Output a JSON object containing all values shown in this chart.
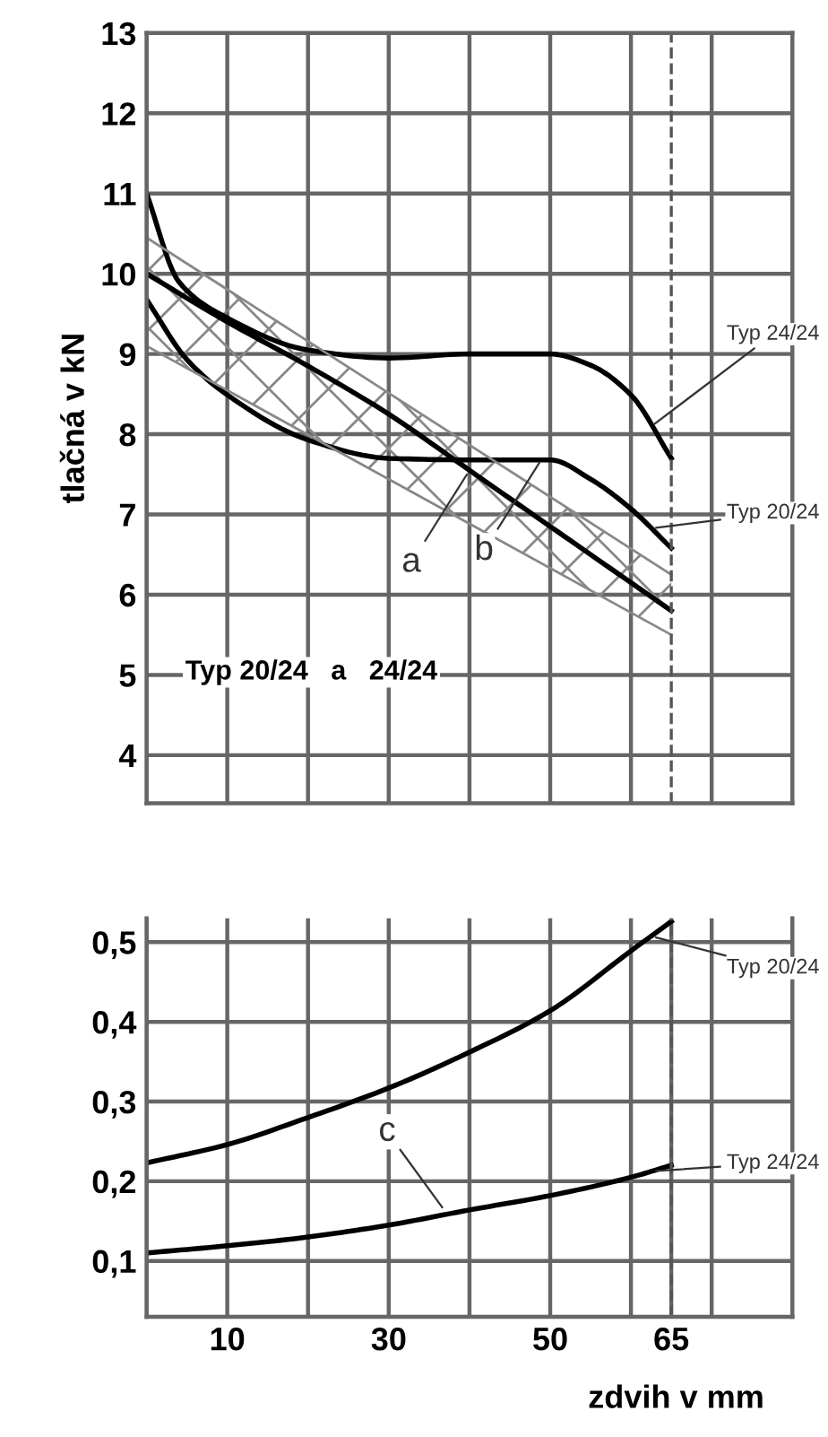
{
  "chart_data": [
    {
      "type": "line",
      "ylabel": "tlačná v kN",
      "xlim": [
        0,
        80
      ],
      "ylim": [
        3.4,
        13
      ],
      "xticks": [
        {
          "value": 0,
          "label": null
        },
        {
          "value": 10,
          "label": null
        },
        {
          "value": 20,
          "label": null
        },
        {
          "value": 30,
          "label": null
        },
        {
          "value": 40,
          "label": null
        },
        {
          "value": 50,
          "label": null
        },
        {
          "value": 60,
          "label": null
        },
        {
          "value": 70,
          "label": null
        },
        {
          "value": 80,
          "label": null
        }
      ],
      "yticks": [
        4,
        5,
        6,
        7,
        8,
        9,
        10,
        11,
        12,
        13
      ],
      "tick_labels": "y",
      "grid": true,
      "legend": false,
      "series": [
        {
          "name": "Typ 24/24",
          "color": "#000000",
          "x": [
            0,
            4,
            10,
            20,
            30,
            40,
            50,
            55,
            60,
            65
          ],
          "values": [
            11,
            9.9,
            9.45,
            9.05,
            8.95,
            9.0,
            9.0,
            8.86,
            8.49,
            7.7
          ]
        },
        {
          "name": "Typ 20/24",
          "color": "#000000",
          "x": [
            0,
            5,
            10,
            20,
            30,
            40,
            50,
            55,
            60,
            65
          ],
          "values": [
            9.68,
            8.93,
            8.49,
            7.93,
            7.7,
            7.68,
            7.68,
            7.44,
            7.07,
            6.58
          ]
        },
        {
          "color": "#000000",
          "x": [
            0,
            10,
            20,
            30,
            40,
            50,
            60,
            65
          ],
          "values": [
            10,
            9.4,
            8.85,
            8.25,
            7.55,
            6.85,
            6.15,
            5.8
          ]
        },
        {
          "color": "#888888",
          "x": [
            0,
            65
          ],
          "values": [
            10.45,
            6.25
          ]
        },
        {
          "color": "#888888",
          "x": [
            0,
            65
          ],
          "values": [
            9.1,
            5.5
          ]
        }
      ],
      "ref_lines": [
        {
          "axis": "x",
          "value": 65,
          "line_style": "dashed",
          "color": "#555555"
        }
      ],
      "annotations": [
        {
          "text": "b",
          "x": 49,
          "y": 7.7
        },
        {
          "text": "a",
          "x": 40,
          "y": 7.55
        },
        "Typ 20/24   a   24/24"
      ]
    },
    {
      "type": "line",
      "xlabel": "zdvih v mm",
      "xlim": [
        0,
        80
      ],
      "ylim": [
        0.03,
        0.53
      ],
      "xticks": [
        {
          "value": 0,
          "label": null
        },
        10,
        {
          "value": 20,
          "label": null
        },
        30,
        {
          "value": 40,
          "label": null
        },
        50,
        {
          "value": 60,
          "label": null
        },
        65,
        {
          "value": 70,
          "label": null
        },
        {
          "value": 80,
          "label": null
        }
      ],
      "yticks": [
        {
          "value": 0.1,
          "label": "0,1"
        },
        {
          "value": 0.2,
          "label": "0,2"
        },
        {
          "value": 0.3,
          "label": "0,3"
        },
        {
          "value": 0.4,
          "label": "0,4"
        },
        {
          "value": 0.5,
          "label": "0,5"
        }
      ],
      "grid": true,
      "legend": false,
      "series": [
        {
          "name": "Typ 20/24",
          "color": "#000000",
          "x": [
            0,
            10,
            20,
            30,
            40,
            50,
            60,
            65
          ],
          "values": [
            0.223,
            0.246,
            0.28,
            0.317,
            0.362,
            0.414,
            0.489,
            0.526
          ]
        },
        {
          "name": "Typ 24/24",
          "color": "#000000",
          "x": [
            0,
            10,
            20,
            30,
            40,
            50,
            60,
            65
          ],
          "values": [
            0.11,
            0.119,
            0.13,
            0.145,
            0.164,
            0.182,
            0.205,
            0.22
          ]
        }
      ],
      "ref_lines": [
        {
          "axis": "x",
          "value": 65,
          "line_style": "dashed",
          "color": "#555555"
        }
      ],
      "annotations": [
        {
          "text": "c",
          "x": 37,
          "y": 0.162
        }
      ]
    }
  ]
}
